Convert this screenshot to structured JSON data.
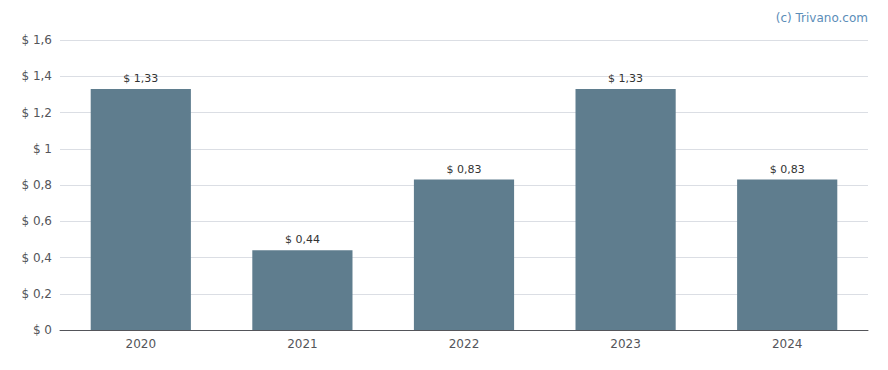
{
  "chart_data": {
    "type": "bar",
    "categories": [
      "2020",
      "2021",
      "2022",
      "2023",
      "2024"
    ],
    "values": [
      1.33,
      0.44,
      0.83,
      1.33,
      0.83
    ],
    "value_labels": [
      "$ 1,33",
      "$ 0,44",
      "$ 0,83",
      "$ 1,33",
      "$ 0,83"
    ],
    "data_labels": true,
    "color": "#5f7d8e",
    "ylim": [
      0,
      1.6
    ],
    "yticks": [
      {
        "value": 0,
        "label": "$ 0"
      },
      {
        "value": 0.2,
        "label": "$ 0,2"
      },
      {
        "value": 0.4,
        "label": "$ 0,4"
      },
      {
        "value": 0.6,
        "label": "$ 0,6"
      },
      {
        "value": 0.8,
        "label": "$ 0,8"
      },
      {
        "value": 1.0,
        "label": "$ 1"
      },
      {
        "value": 1.2,
        "label": "$ 1,2"
      },
      {
        "value": 1.4,
        "label": "$ 1,4"
      },
      {
        "value": 1.6,
        "label": "$ 1,6"
      }
    ],
    "grid": true,
    "annotations": [
      {
        "text": "(c) Trivano.com",
        "color": "#5b8db8"
      }
    ]
  }
}
